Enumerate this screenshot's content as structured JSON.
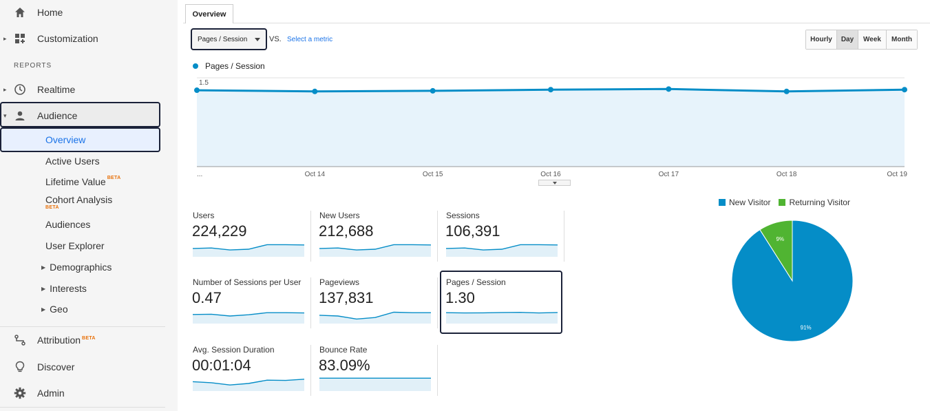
{
  "sidebar": {
    "top_items": [
      {
        "label": "Home",
        "icon": "home-icon"
      },
      {
        "label": "Customization",
        "icon": "dashboard-icon"
      }
    ],
    "reports_heading": "REPORTS",
    "realtime": {
      "label": "Realtime",
      "icon": "clock-icon"
    },
    "audience": {
      "label": "Audience",
      "icon": "person-icon"
    },
    "audience_sub": [
      {
        "label": "Overview"
      },
      {
        "label": "Active Users"
      },
      {
        "label": "Lifetime Value",
        "badge": "BETA"
      },
      {
        "label": "Cohort Analysis",
        "badge": "BETA"
      },
      {
        "label": "Audiences"
      },
      {
        "label": "User Explorer"
      }
    ],
    "audience_groups": [
      {
        "label": "Demographics"
      },
      {
        "label": "Interests"
      },
      {
        "label": "Geo"
      }
    ],
    "bottom_items": [
      {
        "label": "Attribution",
        "badge": "BETA",
        "icon": "attribution-icon"
      },
      {
        "label": "Discover",
        "icon": "lightbulb-icon"
      },
      {
        "label": "Admin",
        "icon": "gear-icon"
      }
    ]
  },
  "main": {
    "tab_label": "Overview",
    "metric_select_value": "Pages / Session",
    "vs_label": "VS.",
    "select_metric_link": "Select a metric",
    "time_buttons": [
      "Hourly",
      "Day",
      "Week",
      "Month"
    ],
    "active_time_button": "Day",
    "legend_label": "Pages / Session"
  },
  "chart_data": [
    {
      "type": "area",
      "series": [
        {
          "name": "Pages / Session",
          "values": [
            1.29,
            1.27,
            1.28,
            1.3,
            1.31,
            1.27,
            1.3
          ]
        }
      ],
      "categories": [
        "...",
        "Oct 14",
        "Oct 15",
        "Oct 16",
        "Oct 17",
        "Oct 18",
        "Oct 19"
      ],
      "yticks": [
        "1.5",
        "1",
        "0.5"
      ],
      "ylim": [
        0,
        1.5
      ],
      "grid": true,
      "color": "#058dc7"
    },
    {
      "type": "pie",
      "categories": [
        "New Visitor",
        "Returning Visitor"
      ],
      "values": [
        91,
        9
      ],
      "labels": [
        "91%",
        "9%"
      ],
      "colors": [
        "#058dc7",
        "#50b432"
      ],
      "legend": "top"
    }
  ],
  "metrics": [
    {
      "name": "Users",
      "value": "224,229",
      "spark": [
        0.55,
        0.58,
        0.45,
        0.5,
        0.8,
        0.8,
        0.78
      ]
    },
    {
      "name": "New Users",
      "value": "212,688",
      "spark": [
        0.55,
        0.58,
        0.45,
        0.5,
        0.8,
        0.8,
        0.78
      ]
    },
    {
      "name": "Sessions",
      "value": "106,391",
      "spark": [
        0.55,
        0.58,
        0.45,
        0.5,
        0.8,
        0.8,
        0.78
      ]
    },
    {
      "name": "Number of Sessions per User",
      "value": "0.47",
      "spark": [
        0.6,
        0.62,
        0.5,
        0.58,
        0.72,
        0.72,
        0.7
      ]
    },
    {
      "name": "Pageviews",
      "value": "137,831",
      "spark": [
        0.55,
        0.5,
        0.3,
        0.4,
        0.75,
        0.72,
        0.72
      ]
    },
    {
      "name": "Pages / Session",
      "value": "1.30",
      "spark": [
        0.72,
        0.7,
        0.71,
        0.73,
        0.74,
        0.7,
        0.73
      ]
    },
    {
      "name": "Avg. Session Duration",
      "value": "00:01:04",
      "spark": [
        0.62,
        0.55,
        0.4,
        0.5,
        0.72,
        0.7,
        0.78
      ]
    },
    {
      "name": "Bounce Rate",
      "value": "83.09%",
      "spark": [
        0.85,
        0.85,
        0.85,
        0.85,
        0.85,
        0.85,
        0.85
      ]
    }
  ]
}
